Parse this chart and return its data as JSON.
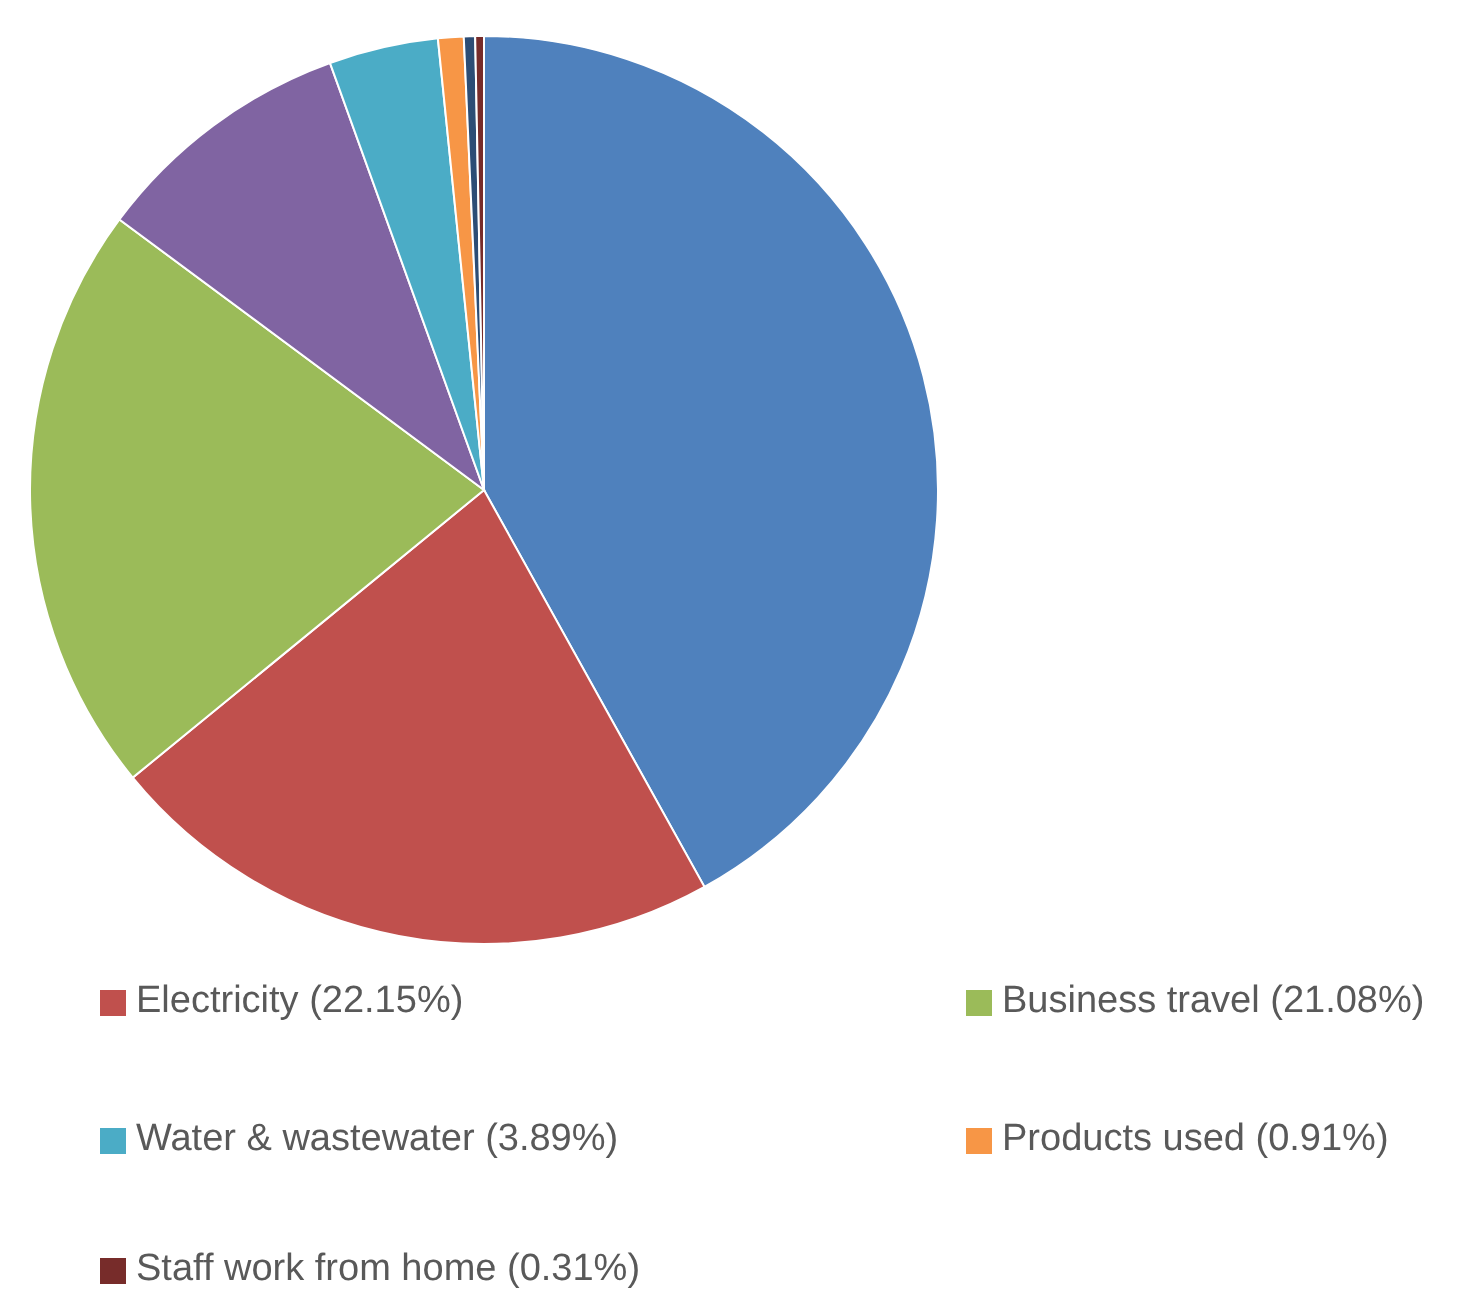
{
  "chart_data": {
    "type": "pie",
    "categories": [
      null,
      "Electricity (22.15%)",
      "Business travel (21.08%)",
      null,
      "Water & wastewater (3.89%)",
      "Products used (0.91%)",
      null,
      "Staff work from home (0.31%)"
    ],
    "values": [
      41.93,
      22.15,
      21.08,
      9.33,
      3.89,
      0.91,
      0.4,
      0.31
    ],
    "colors": [
      "#4f81bd",
      "#c0504d",
      "#9bbb59",
      "#8064a2",
      "#4bacc6",
      "#f79646",
      "#2c4d75",
      "#772c2a"
    ],
    "legend": "bottom"
  }
}
